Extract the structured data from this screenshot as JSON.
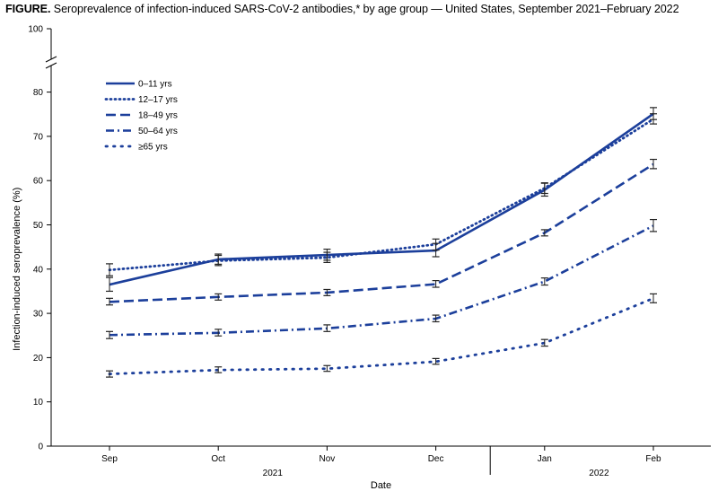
{
  "title": {
    "lead": "FIGURE.",
    "text": "Seroprevalence of infection-induced SARS-CoV-2 antibodies,* by age group — United States, September 2021–February 2022"
  },
  "chart_data": {
    "type": "line",
    "title": "Seroprevalence of infection-induced SARS-CoV-2 antibodies,* by age group — United States, September 2021–February 2022",
    "xlabel": "Date",
    "ylabel": "Infection-induced seroprevalence (%)",
    "categories": [
      "Sep",
      "Oct",
      "Nov",
      "Dec",
      "Jan",
      "Feb"
    ],
    "year_labels": [
      "2021",
      "2022"
    ],
    "yticks": [
      0,
      10,
      20,
      30,
      40,
      50,
      60,
      70,
      80
    ],
    "ytick_top": 100,
    "ylim": [
      0,
      80
    ],
    "axis_break": true,
    "grid": false,
    "legend_position": "top-left",
    "line_color": "#1c3f9b",
    "series": [
      {
        "name": "0–11 yrs",
        "dash": "solid",
        "values": [
          36.5,
          42.2,
          43.2,
          44.2,
          57.9,
          75.1
        ],
        "ci": [
          [
            35.0,
            38.1
          ],
          [
            41.1,
            43.4
          ],
          [
            42.0,
            44.5
          ],
          [
            42.8,
            45.8
          ],
          [
            56.5,
            59.4
          ],
          [
            73.8,
            76.5
          ]
        ]
      },
      {
        "name": "12–17 yrs",
        "dash": "dot",
        "values": [
          39.8,
          41.9,
          42.6,
          45.6,
          58.3,
          73.9
        ],
        "ci": [
          [
            38.5,
            41.2
          ],
          [
            40.8,
            43.1
          ],
          [
            41.5,
            43.8
          ],
          [
            44.3,
            46.8
          ],
          [
            57.1,
            59.5
          ],
          [
            72.8,
            75.1
          ]
        ]
      },
      {
        "name": "18–49 yrs",
        "dash": "longdash",
        "values": [
          32.6,
          33.7,
          34.7,
          36.6,
          48.2,
          63.7
        ],
        "ci": [
          [
            31.9,
            33.4
          ],
          [
            33.0,
            34.4
          ],
          [
            34.0,
            35.4
          ],
          [
            35.9,
            37.4
          ],
          [
            47.5,
            48.9
          ],
          [
            62.7,
            64.8
          ]
        ]
      },
      {
        "name": "50–64 yrs",
        "dash": "dashdot",
        "values": [
          25.1,
          25.6,
          26.6,
          28.8,
          37.2,
          49.8
        ],
        "ci": [
          [
            24.3,
            25.9
          ],
          [
            24.9,
            26.4
          ],
          [
            25.9,
            27.4
          ],
          [
            28.1,
            29.6
          ],
          [
            36.4,
            38.0
          ],
          [
            48.5,
            51.2
          ]
        ]
      },
      {
        "name": "≥65 yrs",
        "dash": "sparse-dot",
        "values": [
          16.3,
          17.2,
          17.5,
          19.1,
          23.3,
          33.4
        ],
        "ci": [
          [
            15.6,
            17.0
          ],
          [
            16.6,
            17.9
          ],
          [
            16.9,
            18.2
          ],
          [
            18.5,
            19.8
          ],
          [
            22.6,
            24.1
          ],
          [
            32.4,
            34.4
          ]
        ]
      }
    ]
  }
}
